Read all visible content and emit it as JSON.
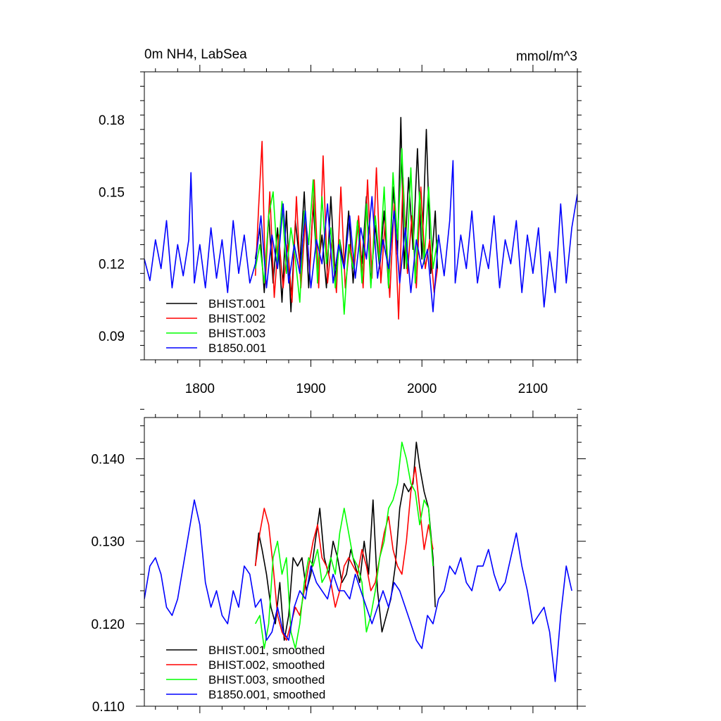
{
  "chart_data": [
    {
      "type": "line",
      "title": "0m NH4, LabSea",
      "units": "mmol/m^3",
      "xlim": [
        1750,
        2140
      ],
      "ylim": [
        0.08,
        0.2
      ],
      "xticks": [
        1800,
        1900,
        2000,
        2100
      ],
      "xtick_labels": [
        "1800",
        "1900",
        "2000",
        "2100"
      ],
      "yticks": [
        0.09,
        0.12,
        0.15,
        0.18
      ],
      "ytick_labels": [
        "0.09",
        "0.12",
        "0.15",
        "0.18"
      ],
      "grid": false,
      "legend": "lower-left",
      "series": [
        {
          "name": "BHIST.001",
          "color": "#000000",
          "x": [
            1850,
            1854,
            1858,
            1862,
            1866,
            1870,
            1874,
            1878,
            1882,
            1886,
            1890,
            1894,
            1898,
            1902,
            1906,
            1910,
            1914,
            1918,
            1922,
            1926,
            1930,
            1934,
            1938,
            1942,
            1946,
            1950,
            1954,
            1958,
            1962,
            1966,
            1970,
            1974,
            1978,
            1981,
            1984,
            1988,
            1992,
            1996,
            2000,
            2004,
            2008,
            2012,
            2014
          ],
          "values": [
            0.122,
            0.135,
            0.108,
            0.14,
            0.112,
            0.135,
            0.104,
            0.142,
            0.1,
            0.138,
            0.12,
            0.15,
            0.11,
            0.145,
            0.116,
            0.132,
            0.11,
            0.148,
            0.114,
            0.13,
            0.118,
            0.142,
            0.112,
            0.138,
            0.12,
            0.148,
            0.112,
            0.136,
            0.118,
            0.142,
            0.11,
            0.152,
            0.124,
            0.181,
            0.118,
            0.156,
            0.126,
            0.168,
            0.122,
            0.176,
            0.116,
            0.142,
            0.118
          ]
        },
        {
          "name": "BHIST.002",
          "color": "#ff0000",
          "x": [
            1850,
            1853,
            1856,
            1859,
            1863,
            1867,
            1871,
            1875,
            1879,
            1883,
            1887,
            1891,
            1895,
            1899,
            1903,
            1907,
            1911,
            1915,
            1919,
            1923,
            1927,
            1931,
            1935,
            1939,
            1943,
            1947,
            1951,
            1955,
            1959,
            1963,
            1967,
            1971,
            1975,
            1979,
            1983,
            1987,
            1991,
            1995,
            1999,
            2003,
            2007,
            2011,
            2014
          ],
          "values": [
            0.115,
            0.144,
            0.171,
            0.112,
            0.15,
            0.106,
            0.132,
            0.11,
            0.128,
            0.104,
            0.148,
            0.11,
            0.138,
            0.116,
            0.155,
            0.11,
            0.165,
            0.112,
            0.13,
            0.108,
            0.152,
            0.11,
            0.128,
            0.118,
            0.14,
            0.11,
            0.155,
            0.114,
            0.16,
            0.112,
            0.138,
            0.106,
            0.145,
            0.097,
            0.156,
            0.116,
            0.14,
            0.11,
            0.152,
            0.118,
            0.13,
            0.108,
            0.118
          ]
        },
        {
          "name": "BHIST.003",
          "color": "#00ff00",
          "x": [
            1850,
            1854,
            1858,
            1862,
            1866,
            1870,
            1874,
            1878,
            1882,
            1886,
            1890,
            1894,
            1898,
            1902,
            1906,
            1910,
            1914,
            1918,
            1922,
            1926,
            1930,
            1934,
            1938,
            1942,
            1946,
            1950,
            1954,
            1958,
            1962,
            1966,
            1970,
            1974,
            1978,
            1982,
            1986,
            1990,
            1994,
            1998,
            2002,
            2006,
            2010,
            2014
          ],
          "values": [
            0.118,
            0.128,
            0.112,
            0.14,
            0.15,
            0.12,
            0.146,
            0.116,
            0.135,
            0.122,
            0.104,
            0.142,
            0.128,
            0.155,
            0.112,
            0.148,
            0.12,
            0.135,
            0.11,
            0.13,
            0.099,
            0.128,
            0.118,
            0.138,
            0.112,
            0.145,
            0.11,
            0.14,
            0.12,
            0.152,
            0.11,
            0.158,
            0.13,
            0.168,
            0.118,
            0.16,
            0.112,
            0.15,
            0.12,
            0.152,
            0.118,
            0.13
          ]
        },
        {
          "name": "B1850.001",
          "color": "#0000ff",
          "x": [
            1750,
            1755,
            1760,
            1765,
            1770,
            1775,
            1780,
            1785,
            1790,
            1792,
            1795,
            1800,
            1805,
            1810,
            1815,
            1820,
            1825,
            1830,
            1835,
            1840,
            1845,
            1850,
            1855,
            1860,
            1865,
            1870,
            1875,
            1880,
            1885,
            1890,
            1895,
            1900,
            1905,
            1910,
            1915,
            1920,
            1925,
            1930,
            1935,
            1940,
            1945,
            1950,
            1955,
            1960,
            1965,
            1970,
            1975,
            1980,
            1985,
            1990,
            1995,
            2000,
            2005,
            2010,
            2015,
            2020,
            2025,
            2028,
            2030,
            2035,
            2040,
            2045,
            2050,
            2055,
            2060,
            2065,
            2070,
            2075,
            2080,
            2085,
            2090,
            2095,
            2100,
            2105,
            2110,
            2115,
            2120,
            2125,
            2130,
            2135,
            2140
          ],
          "values": [
            0.122,
            0.113,
            0.13,
            0.118,
            0.138,
            0.11,
            0.128,
            0.115,
            0.13,
            0.158,
            0.112,
            0.128,
            0.11,
            0.135,
            0.114,
            0.13,
            0.108,
            0.138,
            0.116,
            0.132,
            0.112,
            0.12,
            0.14,
            0.11,
            0.132,
            0.118,
            0.145,
            0.112,
            0.128,
            0.116,
            0.142,
            0.11,
            0.13,
            0.12,
            0.145,
            0.112,
            0.128,
            0.118,
            0.14,
            0.114,
            0.135,
            0.122,
            0.148,
            0.114,
            0.13,
            0.118,
            0.142,
            0.112,
            0.135,
            0.108,
            0.13,
            0.118,
            0.126,
            0.1,
            0.132,
            0.115,
            0.138,
            0.163,
            0.112,
            0.132,
            0.118,
            0.142,
            0.112,
            0.128,
            0.118,
            0.14,
            0.11,
            0.13,
            0.12,
            0.138,
            0.108,
            0.132,
            0.116,
            0.135,
            0.102,
            0.125,
            0.108,
            0.145,
            0.112,
            0.135,
            0.149
          ]
        }
      ]
    },
    {
      "type": "line",
      "title": "",
      "units": "",
      "xlim": [
        1750,
        2140
      ],
      "ylim": [
        0.11,
        0.145
      ],
      "xticks": [
        1800,
        1900,
        2000,
        2100
      ],
      "xtick_labels": [],
      "yticks": [
        0.11,
        0.12,
        0.13,
        0.14
      ],
      "ytick_labels": [
        "0.110",
        "0.120",
        "0.130",
        "0.140"
      ],
      "grid": false,
      "legend": "lower-left",
      "series": [
        {
          "name": "BHIST.001, smoothed",
          "color": "#000000",
          "x": [
            1850,
            1853,
            1856,
            1860,
            1864,
            1868,
            1872,
            1876,
            1880,
            1884,
            1888,
            1892,
            1896,
            1900,
            1904,
            1908,
            1912,
            1916,
            1920,
            1924,
            1928,
            1932,
            1936,
            1940,
            1944,
            1948,
            1952,
            1956,
            1960,
            1964,
            1968,
            1972,
            1976,
            1980,
            1984,
            1988,
            1992,
            1995,
            1998,
            2002,
            2006,
            2010,
            2012
          ],
          "values": [
            0.127,
            0.131,
            0.129,
            0.126,
            0.122,
            0.12,
            0.125,
            0.118,
            0.121,
            0.128,
            0.127,
            0.128,
            0.124,
            0.126,
            0.13,
            0.134,
            0.128,
            0.126,
            0.13,
            0.128,
            0.125,
            0.126,
            0.129,
            0.127,
            0.125,
            0.13,
            0.126,
            0.135,
            0.124,
            0.119,
            0.121,
            0.123,
            0.127,
            0.134,
            0.137,
            0.136,
            0.137,
            0.142,
            0.139,
            0.136,
            0.134,
            0.128,
            0.122
          ]
        },
        {
          "name": "BHIST.002, smoothed",
          "color": "#ff0000",
          "x": [
            1850,
            1854,
            1858,
            1862,
            1866,
            1870,
            1874,
            1878,
            1882,
            1886,
            1890,
            1894,
            1898,
            1902,
            1906,
            1910,
            1914,
            1918,
            1922,
            1926,
            1930,
            1934,
            1938,
            1942,
            1946,
            1950,
            1954,
            1958,
            1962,
            1966,
            1970,
            1974,
            1978,
            1982,
            1986,
            1990,
            1994,
            1998,
            2002,
            2006,
            2010
          ],
          "values": [
            0.127,
            0.131,
            0.134,
            0.132,
            0.127,
            0.121,
            0.119,
            0.118,
            0.12,
            0.122,
            0.121,
            0.124,
            0.127,
            0.13,
            0.132,
            0.128,
            0.127,
            0.125,
            0.122,
            0.124,
            0.127,
            0.128,
            0.127,
            0.126,
            0.129,
            0.127,
            0.124,
            0.125,
            0.128,
            0.131,
            0.133,
            0.129,
            0.127,
            0.126,
            0.13,
            0.136,
            0.139,
            0.134,
            0.129,
            0.132,
            0.129
          ]
        },
        {
          "name": "BHIST.003, smoothed",
          "color": "#00ff00",
          "x": [
            1850,
            1854,
            1858,
            1862,
            1866,
            1870,
            1874,
            1878,
            1882,
            1886,
            1890,
            1894,
            1898,
            1902,
            1906,
            1910,
            1914,
            1918,
            1922,
            1926,
            1930,
            1934,
            1938,
            1942,
            1946,
            1950,
            1954,
            1958,
            1962,
            1966,
            1970,
            1974,
            1978,
            1982,
            1986,
            1990,
            1994,
            1998,
            2002,
            2006,
            2010
          ],
          "values": [
            0.12,
            0.121,
            0.117,
            0.12,
            0.128,
            0.13,
            0.126,
            0.128,
            0.119,
            0.117,
            0.12,
            0.125,
            0.128,
            0.127,
            0.129,
            0.125,
            0.126,
            0.128,
            0.126,
            0.131,
            0.134,
            0.131,
            0.128,
            0.127,
            0.125,
            0.119,
            0.121,
            0.124,
            0.128,
            0.13,
            0.134,
            0.135,
            0.137,
            0.142,
            0.14,
            0.137,
            0.136,
            0.132,
            0.135,
            0.134,
            0.127
          ]
        },
        {
          "name": "B1850.001, smoothed",
          "color": "#0000ff",
          "x": [
            1750,
            1755,
            1760,
            1765,
            1770,
            1775,
            1780,
            1785,
            1790,
            1795,
            1800,
            1805,
            1810,
            1815,
            1820,
            1825,
            1830,
            1835,
            1840,
            1845,
            1850,
            1855,
            1860,
            1865,
            1870,
            1875,
            1880,
            1885,
            1890,
            1895,
            1900,
            1905,
            1910,
            1915,
            1920,
            1925,
            1930,
            1935,
            1940,
            1945,
            1950,
            1955,
            1960,
            1965,
            1970,
            1975,
            1980,
            1985,
            1990,
            1995,
            2000,
            2005,
            2010,
            2015,
            2020,
            2025,
            2030,
            2035,
            2040,
            2045,
            2050,
            2055,
            2060,
            2065,
            2070,
            2075,
            2080,
            2085,
            2090,
            2095,
            2100,
            2105,
            2110,
            2115,
            2120,
            2125,
            2130,
            2135
          ],
          "values": [
            0.123,
            0.127,
            0.128,
            0.126,
            0.122,
            0.121,
            0.123,
            0.127,
            0.131,
            0.135,
            0.132,
            0.125,
            0.122,
            0.124,
            0.121,
            0.12,
            0.124,
            0.122,
            0.127,
            0.126,
            0.122,
            0.123,
            0.118,
            0.119,
            0.122,
            0.119,
            0.118,
            0.122,
            0.124,
            0.123,
            0.127,
            0.125,
            0.124,
            0.123,
            0.126,
            0.124,
            0.124,
            0.123,
            0.126,
            0.124,
            0.122,
            0.12,
            0.122,
            0.124,
            0.122,
            0.125,
            0.124,
            0.122,
            0.12,
            0.118,
            0.117,
            0.121,
            0.12,
            0.123,
            0.124,
            0.127,
            0.126,
            0.128,
            0.125,
            0.124,
            0.127,
            0.127,
            0.129,
            0.126,
            0.124,
            0.125,
            0.128,
            0.131,
            0.127,
            0.124,
            0.12,
            0.121,
            0.122,
            0.119,
            0.113,
            0.121,
            0.127,
            0.124
          ]
        }
      ]
    }
  ]
}
